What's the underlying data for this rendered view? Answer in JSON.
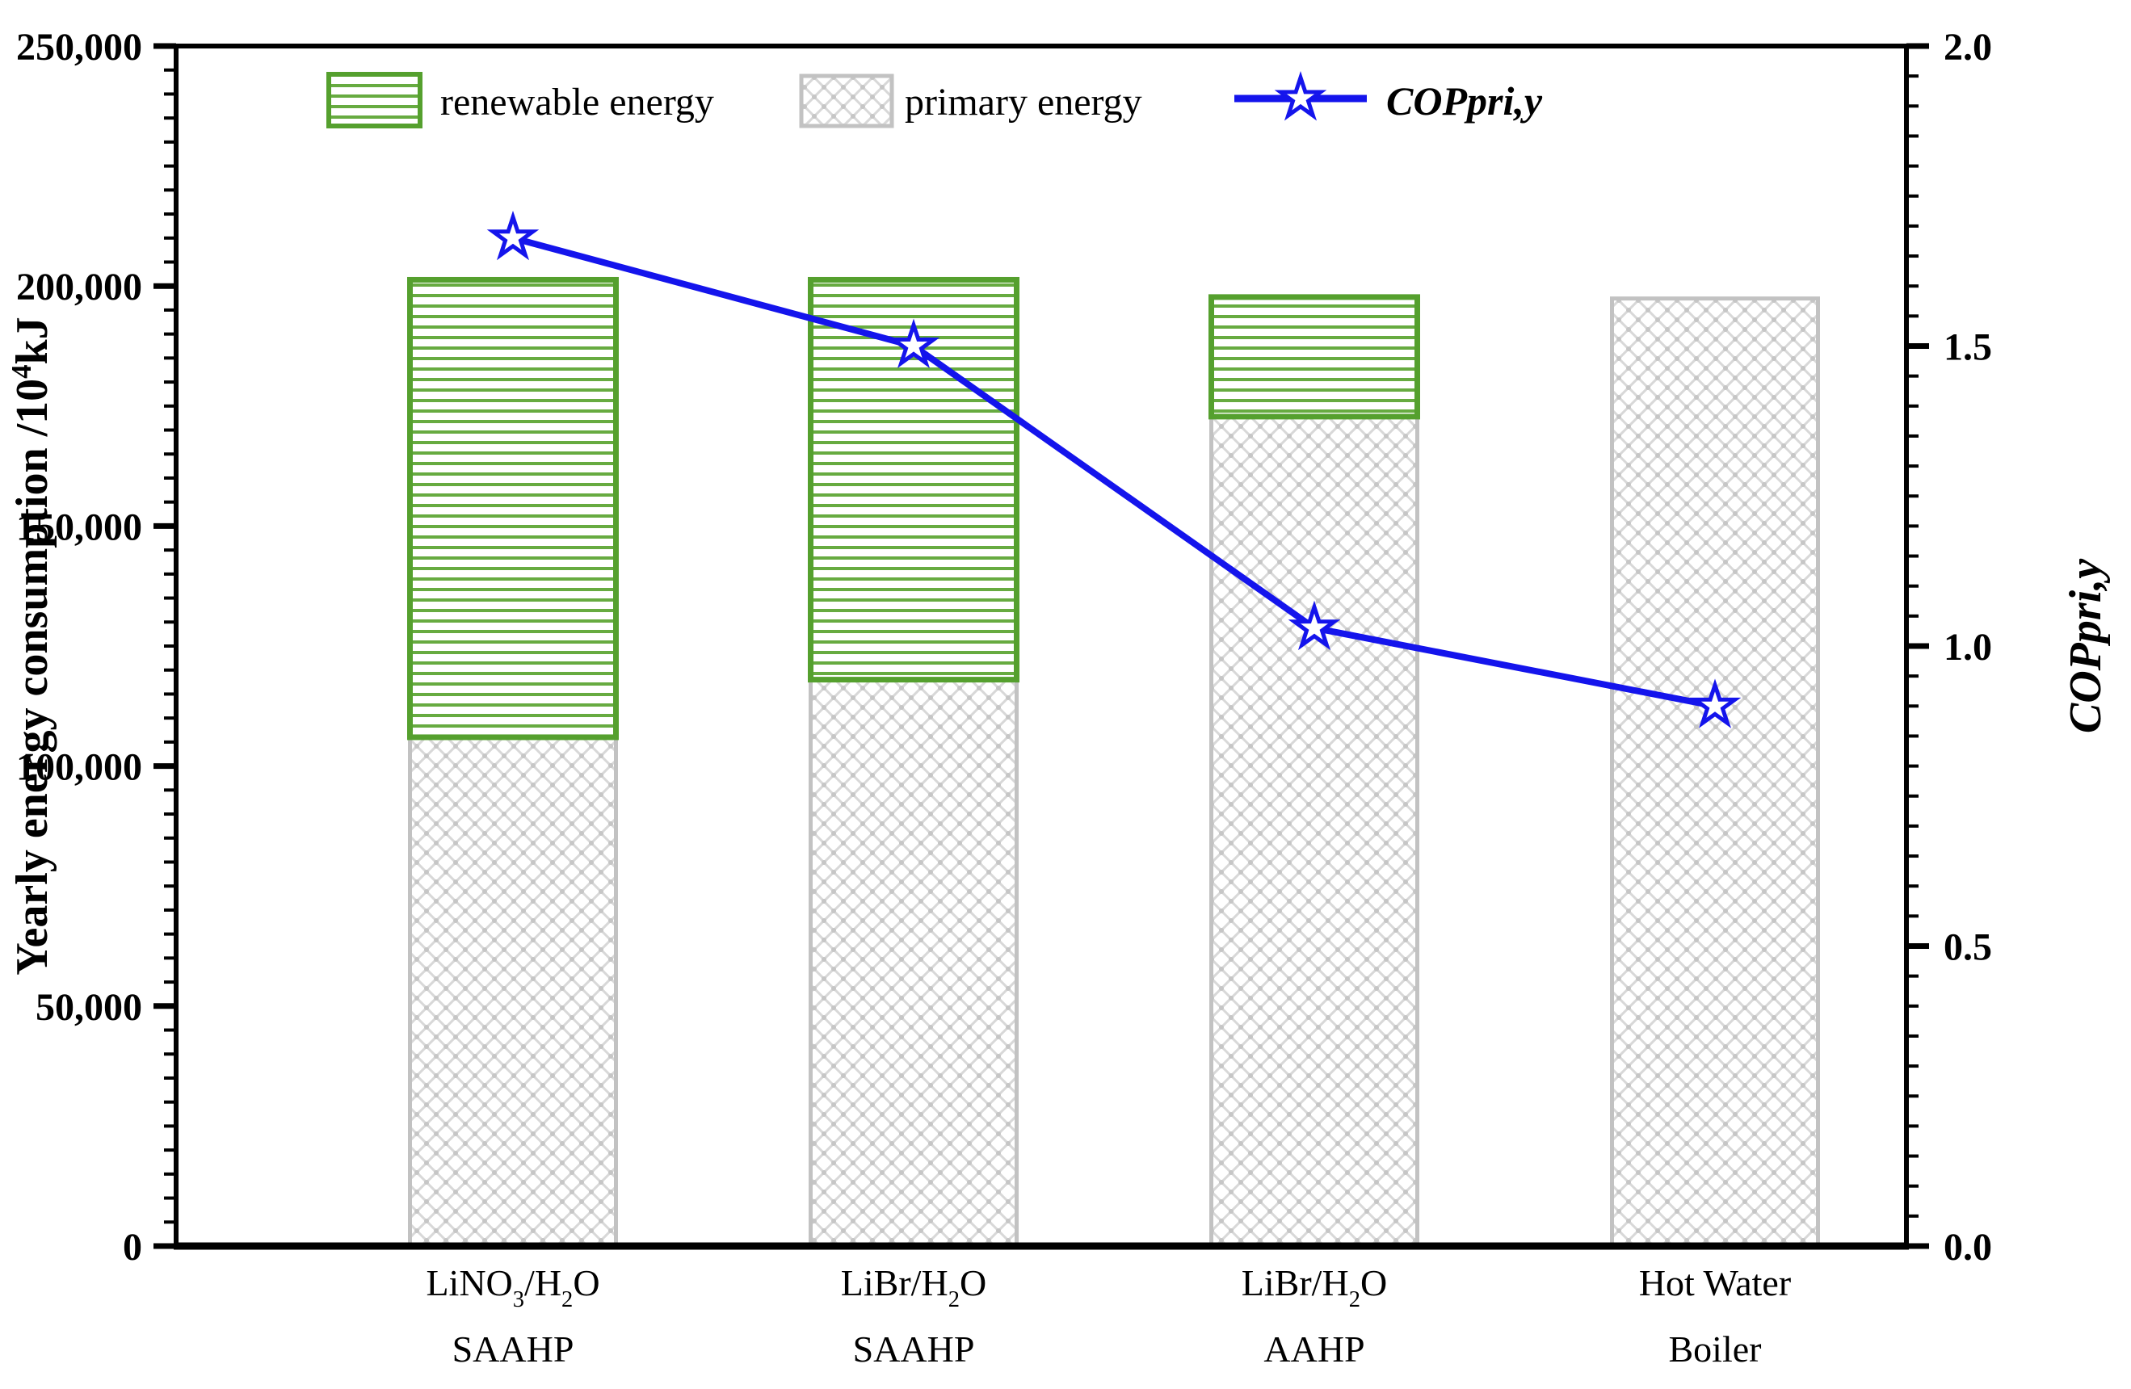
{
  "chart_data": {
    "type": "bar+line",
    "title": "",
    "categories": [
      {
        "line1": [
          {
            "t": "LiNO"
          },
          {
            "t": "3",
            "sub": true
          },
          {
            "t": "/H"
          },
          {
            "t": "2",
            "sub": true
          },
          {
            "t": "O"
          }
        ],
        "line2": "SAAHP",
        "plain": "LiNO3/H2O SAAHP"
      },
      {
        "line1": [
          {
            "t": "LiBr/H"
          },
          {
            "t": "2",
            "sub": true
          },
          {
            "t": "O"
          }
        ],
        "line2": "SAAHP",
        "plain": "LiBr/H2O SAAHP"
      },
      {
        "line1": [
          {
            "t": "LiBr/H"
          },
          {
            "t": "2",
            "sub": true
          },
          {
            "t": "O"
          }
        ],
        "line2": "AAHP",
        "plain": "LiBr/H2O AAHP"
      },
      {
        "line1": [
          {
            "t": "Hot Water"
          }
        ],
        "line2": "Boiler",
        "plain": "Hot Water Boiler"
      }
    ],
    "series": [
      {
        "name": "renewable energy",
        "type": "bar",
        "stack": "top",
        "axis": "left",
        "values": [
          95300,
          83300,
          24900,
          0
        ],
        "pattern": "horizontal-lines",
        "border_color": "#55A02E",
        "line_color": "#67AB40"
      },
      {
        "name": "primary energy",
        "type": "bar",
        "stack": "bottom",
        "axis": "left",
        "values": [
          106000,
          118000,
          172800,
          197400
        ],
        "pattern": "crosshatch",
        "border_color": "#C2C2C2",
        "line_color": "#D8D8D8"
      },
      {
        "name": "COPpri,y",
        "type": "line",
        "axis": "right",
        "values": [
          1.68,
          1.5,
          1.03,
          0.9
        ],
        "color": "#1414EC",
        "marker": "open-star"
      }
    ],
    "stacked_totals": [
      201300,
      201300,
      197700,
      197400
    ],
    "left_axis": {
      "title_segments": [
        {
          "t": "Yearly energy consumption /10"
        },
        {
          "t": "4",
          "sup": true
        },
        {
          "t": "kJ"
        }
      ],
      "title_plain": "Yearly energy consumption /10^4 kJ",
      "min": 0,
      "max": 250000,
      "major_tick": 50000,
      "minor_tick": 5000,
      "tick_labels": [
        "0",
        "50,000",
        "100,000",
        "150,000",
        "200,000",
        "250,000"
      ]
    },
    "right_axis": {
      "title": "COPpri,y",
      "min": 0.0,
      "max": 2.0,
      "major_tick": 0.5,
      "minor_tick": 0.05,
      "tick_labels": [
        "0.0",
        "0.5",
        "1.0",
        "1.5",
        "2.0"
      ]
    },
    "legend": {
      "position": "top-inside",
      "items": [
        "renewable energy",
        "primary energy",
        "COPpri,y"
      ]
    },
    "grid": "off",
    "colors": {
      "renewable_green": "#55A02E",
      "primary_gray": "#C2C2C2",
      "cop_blue": "#1414EC",
      "axis_black": "#000000"
    }
  }
}
